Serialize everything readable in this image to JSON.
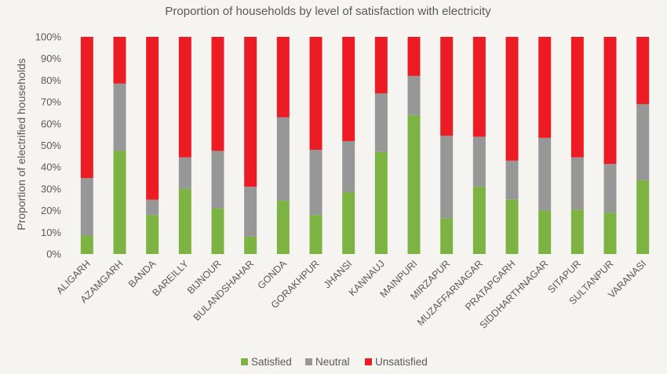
{
  "chart_data": {
    "type": "bar",
    "stacked": true,
    "title": "Proportion of households by level of satisfaction with electricity",
    "xlabel": "",
    "ylabel": "Proportion of electrified households",
    "ylim": [
      0,
      100
    ],
    "yticks": [
      "0%",
      "10%",
      "20%",
      "30%",
      "40%",
      "50%",
      "60%",
      "70%",
      "80%",
      "90%",
      "100%"
    ],
    "grid": false,
    "legend_position": "bottom",
    "categories": [
      "ALIGARH",
      "AZAMGARH",
      "BANDA",
      "BAREILLY",
      "BIJNOUR",
      "BULANDSHAHAR",
      "GONDA",
      "GORAKHPUR",
      "JHANSI",
      "KANNAUJ",
      "MAINPURI",
      "MIRZAPUR",
      "MUZAFFARNAGAR",
      "PRATAPGARH",
      "SIDDHARTHNAGAR",
      "SITAPUR",
      "SULTANPUR",
      "VARANASI"
    ],
    "series": [
      {
        "name": "Satisfied",
        "color": "#7cb342",
        "values": [
          8.5,
          47.5,
          18,
          30,
          21,
          8,
          24.5,
          18,
          28.5,
          47,
          64,
          16.5,
          31,
          25,
          20,
          20.5,
          19,
          34
        ]
      },
      {
        "name": "Neutral",
        "color": "#979797",
        "values": [
          26.5,
          31,
          7,
          14.5,
          26.5,
          23,
          38.5,
          30,
          23.5,
          27,
          18,
          38,
          23,
          18,
          33.5,
          24,
          22.5,
          35
        ]
      },
      {
        "name": "Unsatisfied",
        "color": "#ed1c24",
        "values": [
          65,
          21.5,
          75,
          55.5,
          52.5,
          69,
          37,
          52,
          48,
          26,
          18,
          45.5,
          46,
          57,
          46.5,
          55.5,
          58.5,
          31
        ]
      }
    ]
  }
}
